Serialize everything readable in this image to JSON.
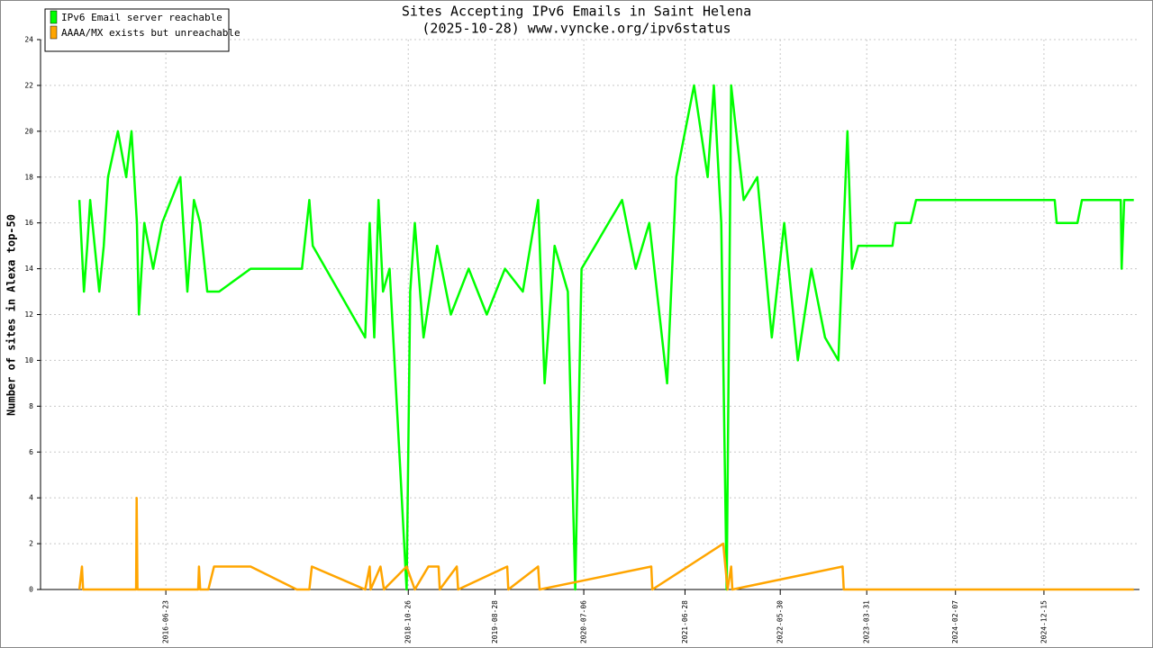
{
  "chart_data": {
    "type": "line",
    "title": "Sites Accepting IPv6 Emails in Saint Helena",
    "subtitle": "(2025-10-28) www.vyncke.org/ipv6status",
    "y_label": "Number of sites in Alexa top-50",
    "xlim": [
      "2015-04-08",
      "2025-11-17"
    ],
    "xticks": [
      "2016-06-23",
      "2018-10-26",
      "2019-08-28",
      "2020-07-06",
      "2021-06-28",
      "2022-05-30",
      "2023-03-31",
      "2024-02-07",
      "2024-12-15"
    ],
    "ylim": [
      0,
      24
    ],
    "yticks": [
      0,
      2,
      4,
      6,
      8,
      10,
      12,
      14,
      16,
      18,
      20,
      22,
      24
    ],
    "grid": true,
    "legend": "upper left",
    "series": [
      {
        "name": "IPv6 Email server reachable",
        "color": "#00ff00",
        "x": [
          "2015-08-23",
          "2015-09-08",
          "2015-09-20",
          "2015-09-30",
          "2015-10-16",
          "2015-11-01",
          "2015-11-17",
          "2015-12-02",
          "2016-01-06",
          "2016-02-04",
          "2016-02-23",
          "2016-03-13",
          "2016-03-20",
          "2016-04-08",
          "2016-05-09",
          "2016-06-10",
          "2016-07-12",
          "2016-08-13",
          "2016-09-07",
          "2016-09-30",
          "2016-10-22",
          "2016-11-16",
          "2016-12-28",
          "2017-04-18",
          "2017-10-16",
          "2017-11-11",
          "2017-11-23",
          "2018-05-27",
          "2018-06-12",
          "2018-06-28",
          "2018-07-13",
          "2018-07-29",
          "2018-08-21",
          "2018-10-20",
          "2018-11-02",
          "2018-11-18",
          "2018-12-19",
          "2019-02-05",
          "2019-03-25",
          "2019-05-27",
          "2019-07-30",
          "2019-10-02",
          "2019-12-04",
          "2020-01-27",
          "2020-02-19",
          "2020-03-25",
          "2020-05-11",
          "2020-06-06",
          "2020-06-28",
          "2020-08-15",
          "2020-10-01",
          "2020-11-18",
          "2021-01-05",
          "2021-02-22",
          "2021-04-26",
          "2021-05-28",
          "2021-07-30",
          "2021-09-16",
          "2021-10-08",
          "2021-11-03",
          "2021-11-22",
          "2021-12-08",
          "2022-01-21",
          "2022-03-10",
          "2022-04-30",
          "2022-06-13",
          "2022-07-31",
          "2022-09-17",
          "2022-11-04",
          "2022-12-21",
          "2023-01-22",
          "2023-02-07",
          "2023-03-01",
          "2023-06-30",
          "2023-07-10",
          "2023-09-02",
          "2023-09-21",
          "2025-01-22",
          "2025-01-29",
          "2025-04-12",
          "2025-04-28",
          "2025-09-12",
          "2025-09-15",
          "2025-09-24",
          "2025-10-28"
        ],
        "values": [
          17,
          13,
          15,
          17,
          15,
          13,
          15,
          18,
          20,
          18,
          20,
          16,
          12,
          16,
          14,
          16,
          17,
          18,
          13,
          17,
          16,
          13,
          13,
          14,
          14,
          17,
          15,
          11,
          16,
          11,
          17,
          13,
          14,
          0,
          13,
          16,
          11,
          15,
          12,
          14,
          12,
          14,
          13,
          17,
          9,
          15,
          13,
          0,
          14,
          15,
          16,
          17,
          14,
          16,
          9,
          18,
          22,
          18,
          22,
          16,
          0,
          22,
          17,
          18,
          11,
          16,
          10,
          14,
          11,
          10,
          20,
          14,
          15,
          15,
          16,
          16,
          17,
          17,
          16,
          16,
          17,
          17,
          14,
          17,
          17
        ]
      },
      {
        "name": "AAAA/MX exists but unreachable",
        "color": "#ffa500",
        "x": [
          "2015-08-23",
          "2015-09-01",
          "2015-09-05",
          "2016-03-10",
          "2016-03-12",
          "2016-03-15",
          "2016-10-15",
          "2016-10-18",
          "2016-10-22",
          "2016-11-20",
          "2016-12-10",
          "2017-04-18",
          "2017-09-28",
          "2017-11-11",
          "2017-11-20",
          "2018-05-27",
          "2018-06-12",
          "2018-06-15",
          "2018-07-20",
          "2018-08-01",
          "2018-10-20",
          "2018-11-18",
          "2019-01-05",
          "2019-02-10",
          "2019-02-14",
          "2019-04-15",
          "2019-04-20",
          "2019-10-10",
          "2019-10-14",
          "2020-01-27",
          "2020-02-01",
          "2021-03-01",
          "2021-03-05",
          "2021-11-10",
          "2021-11-25",
          "2021-12-08",
          "2021-12-12",
          "2023-01-05",
          "2023-01-09",
          "2025-10-28"
        ],
        "values": [
          0,
          1,
          0,
          0,
          4,
          0,
          0,
          1,
          0,
          0,
          1,
          1,
          0,
          0,
          1,
          0,
          1,
          0,
          1,
          0,
          1,
          0,
          1,
          1,
          0,
          1,
          0,
          1,
          0,
          1,
          0,
          1,
          0,
          2,
          0,
          1,
          0,
          1,
          0,
          0
        ]
      }
    ]
  }
}
